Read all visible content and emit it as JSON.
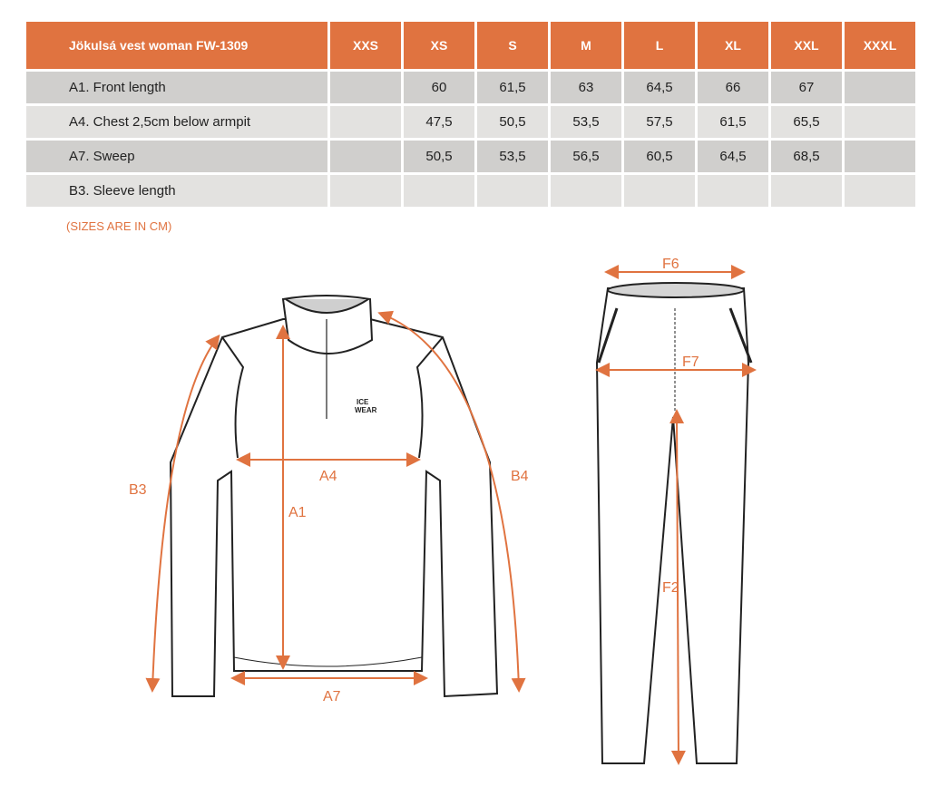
{
  "table": {
    "title": "Jökulsá vest woman FW-1309",
    "sizes": [
      "XXS",
      "XS",
      "S",
      "M",
      "L",
      "XL",
      "XXL",
      "XXXL"
    ],
    "rows": [
      {
        "label": "A1. Front length",
        "values": [
          "",
          "60",
          "61,5",
          "63",
          "64,5",
          "66",
          "67",
          ""
        ]
      },
      {
        "label": "A4. Chest 2,5cm below armpit",
        "values": [
          "",
          "47,5",
          "50,5",
          "53,5",
          "57,5",
          "61,5",
          "65,5",
          ""
        ]
      },
      {
        "label": "A7. Sweep",
        "values": [
          "",
          "50,5",
          "53,5",
          "56,5",
          "60,5",
          "64,5",
          "68,5",
          ""
        ]
      },
      {
        "label": "B3. Sleeve length",
        "values": [
          "",
          "",
          "",
          "",
          "",
          "",
          "",
          ""
        ]
      }
    ]
  },
  "note": "(SIZES ARE IN CM)",
  "diagram": {
    "labels": {
      "a1": "A1",
      "a4": "A4",
      "a7": "A7",
      "b3": "B3",
      "b4": "B4",
      "f2": "F2",
      "f6": "F6",
      "f7": "F7"
    },
    "logo": [
      "ICE",
      "WEAR"
    ]
  },
  "accent": "#e07340"
}
